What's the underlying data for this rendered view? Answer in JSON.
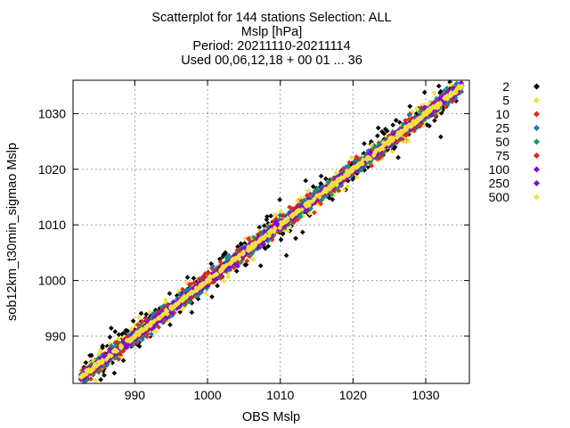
{
  "title_lines": [
    "Scatterplot for  144 stations Selection: ALL",
    "Mslp [hPa]",
    "Period: 20211110-20211114",
    "Used 00,06,12,18 + 00 01 ... 36"
  ],
  "chart_data": {
    "type": "scatter",
    "xlabel": "OBS Mslp",
    "ylabel": "sob12km_t30min_sigmao Mslp",
    "xlim": [
      981.5,
      1036
    ],
    "ylim": [
      981.5,
      1036
    ],
    "xticks": [
      "990",
      "1000",
      "1010",
      "1020",
      "1030"
    ],
    "yticks": [
      "990",
      "1000",
      "1010",
      "1020",
      "1030"
    ],
    "grid": true,
    "legend_position": "right",
    "series": [
      {
        "name": "2",
        "color": "#000000",
        "spread": 2.6
      },
      {
        "name": "5",
        "color": "#f2e040",
        "spread": 2.3
      },
      {
        "name": "10",
        "color": "#e8281e",
        "spread": 1.8
      },
      {
        "name": "25",
        "color": "#1a78b4",
        "spread": 1.6
      },
      {
        "name": "50",
        "color": "#0a9a7a",
        "spread": 1.3
      },
      {
        "name": "75",
        "color": "#d02818",
        "spread": 1.1
      },
      {
        "name": "100",
        "color": "#8c00e0",
        "spread": 0.95
      },
      {
        "name": "250",
        "color": "#7a14c8",
        "spread": 0.75
      },
      {
        "name": "500",
        "color": "#f2e040",
        "spread": 0.45
      }
    ]
  }
}
